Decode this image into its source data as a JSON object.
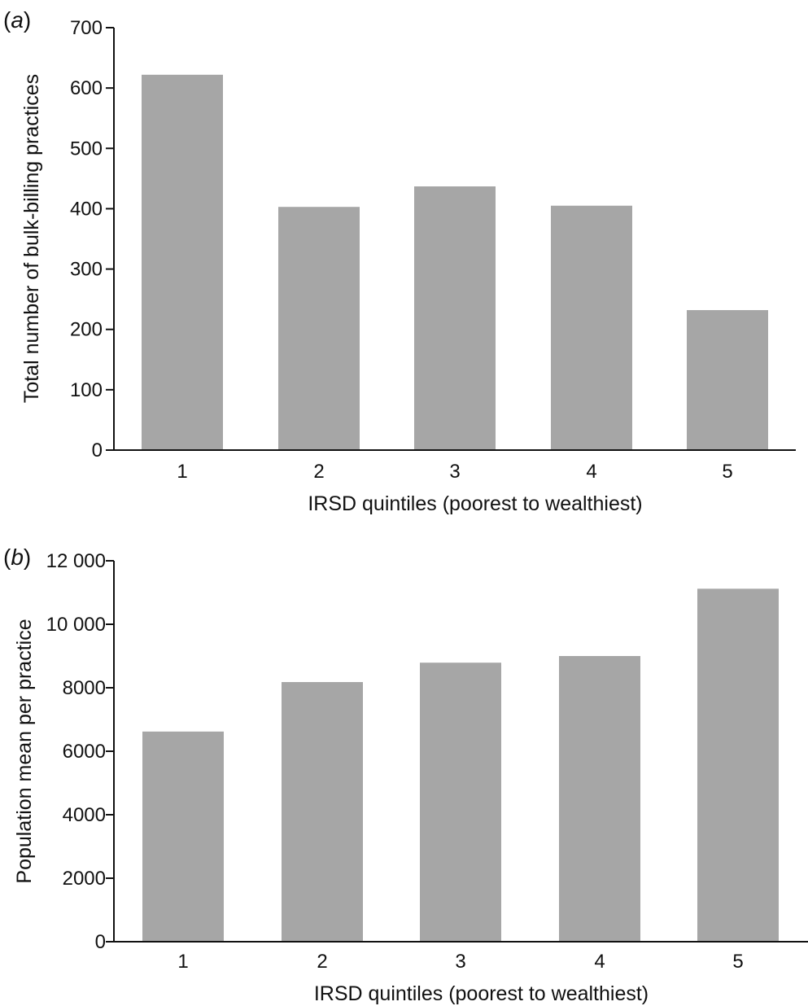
{
  "chart_data": [
    {
      "type": "bar",
      "panel_label": "a",
      "categories": [
        "1",
        "2",
        "3",
        "4",
        "5"
      ],
      "values": [
        622,
        403,
        437,
        405,
        232
      ],
      "xlabel": "IRSD quintiles (poorest to wealthiest)",
      "ylabel": "Total number of bulk-billing practices",
      "ylim": [
        0,
        700
      ],
      "yticks": [
        "0",
        "100",
        "200",
        "300",
        "400",
        "500",
        "600",
        "700"
      ],
      "bar_color": "#a6a6a6",
      "grid": false,
      "legend": "none"
    },
    {
      "type": "bar",
      "panel_label": "b",
      "categories": [
        "1",
        "2",
        "3",
        "4",
        "5"
      ],
      "values": [
        6620,
        8180,
        8790,
        9000,
        11120
      ],
      "xlabel": "IRSD quintiles (poorest to wealthiest)",
      "ylabel": "Population mean per practice",
      "ylim": [
        0,
        12000
      ],
      "yticks": [
        "0",
        "2000",
        "4000",
        "6000",
        "8000",
        "10 000",
        "12 000"
      ],
      "bar_color": "#a6a6a6",
      "grid": false,
      "legend": "none"
    }
  ]
}
